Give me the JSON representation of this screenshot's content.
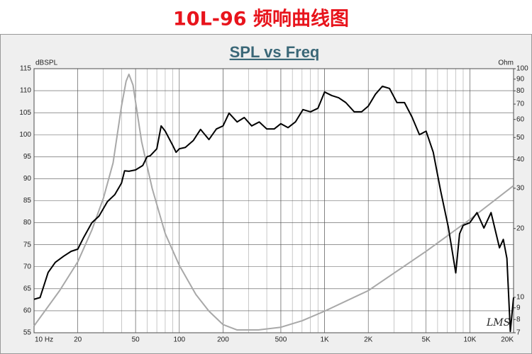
{
  "chart_data": {
    "type": "line",
    "title": "10L-96   频响曲线图",
    "subtitle": "SPL vs Freq",
    "y_label": "dBSPL",
    "y2_label": "Ohm",
    "annotation": "LMS",
    "xscale": "log",
    "y2scale": "log",
    "grid": true,
    "xlim": [
      10,
      20000
    ],
    "xticks": [
      {
        "value": 10,
        "label": "10  Hz"
      },
      20,
      50,
      100,
      200,
      500,
      {
        "value": 1000,
        "label": "1K"
      },
      {
        "value": 2000,
        "label": "2K"
      },
      {
        "value": 5000,
        "label": "5K"
      },
      {
        "value": 10000,
        "label": "10K"
      },
      {
        "value": 20000,
        "label": "20K"
      }
    ],
    "ylim": [
      55,
      115
    ],
    "yticks": [
      55,
      60,
      65,
      70,
      75,
      80,
      85,
      90,
      95,
      100,
      105,
      110,
      115
    ],
    "y2lim": [
      7,
      100
    ],
    "y2ticks": [
      7,
      8,
      9,
      10,
      20,
      30,
      40,
      50,
      60,
      70,
      80,
      90,
      100
    ],
    "series": [
      {
        "color": "#000000",
        "axis": "y",
        "x": [
          10,
          11,
          12.5,
          14,
          16,
          18,
          20,
          22,
          25,
          28,
          32,
          36,
          40,
          42,
          45,
          50,
          56,
          60,
          63,
          70,
          75,
          80,
          90,
          95,
          100,
          110,
          125,
          140,
          160,
          180,
          200,
          220,
          250,
          280,
          315,
          355,
          400,
          450,
          500,
          560,
          630,
          710,
          800,
          900,
          1000,
          1120,
          1250,
          1400,
          1600,
          1800,
          2000,
          2240,
          2500,
          2800,
          3150,
          3550,
          4000,
          4500,
          5000,
          5600,
          6300,
          7100,
          7500,
          8000,
          8500,
          9000,
          10000,
          11200,
          12500,
          14000,
          16000,
          17000,
          18000,
          19000,
          20000
        ],
        "values": [
          62.6,
          63,
          68.7,
          71,
          72.4,
          73.5,
          74,
          76.7,
          80,
          81.5,
          84.8,
          86.4,
          89,
          91.8,
          91.7,
          92,
          93,
          95,
          95.2,
          96.8,
          102,
          100.8,
          97.6,
          96,
          96.8,
          97.1,
          98.7,
          101.2,
          98.9,
          101.3,
          102,
          104.9,
          102.9,
          103.9,
          102,
          102.9,
          101.3,
          101.3,
          102.5,
          101.6,
          102.9,
          105.7,
          105.2,
          106,
          109.7,
          108.9,
          108.4,
          107.3,
          105.2,
          105.2,
          106.5,
          109.2,
          111,
          110.5,
          107.3,
          107.3,
          104,
          100,
          100.8,
          96,
          87.2,
          79.1,
          74.3,
          68.6,
          77.5,
          79.4,
          80,
          82.3,
          78.8,
          82.3,
          74.3,
          76.2,
          71.9,
          55.3,
          63
        ]
      },
      {
        "color": "#a8a8a8",
        "axis": "y2",
        "x": [
          10,
          15,
          20,
          25,
          30,
          35,
          40,
          43,
          45,
          48,
          55,
          65,
          80,
          100,
          130,
          160,
          200,
          250,
          350,
          500,
          700,
          1000,
          2000,
          5000,
          10000,
          20000
        ],
        "values": [
          7.5,
          10.7,
          14.3,
          19.7,
          27.1,
          38.7,
          68.6,
          88,
          94.5,
          84.8,
          48,
          30,
          19,
          13.8,
          10.3,
          8.7,
          7.6,
          7.2,
          7.2,
          7.4,
          7.9,
          8.7,
          10.7,
          15.9,
          21.9,
          30.8
        ]
      }
    ]
  }
}
